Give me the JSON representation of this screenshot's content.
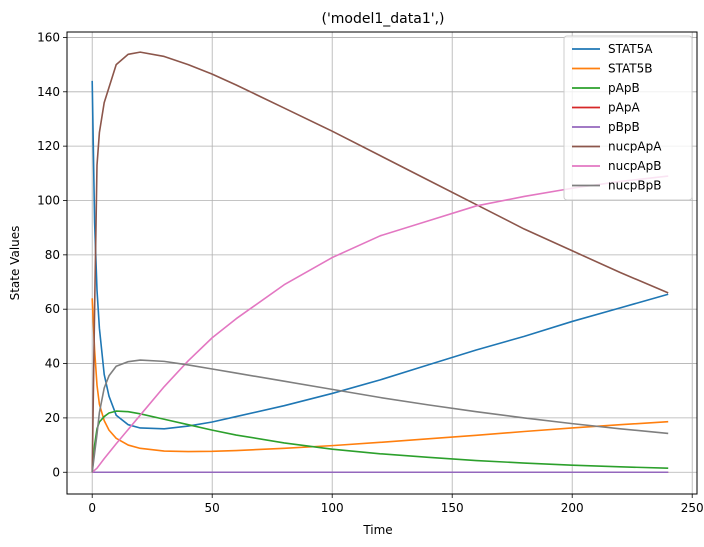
{
  "chart_data": {
    "type": "line",
    "title": "('model1_data1',)",
    "xlabel": "Time",
    "ylabel": "State Values",
    "xlim": [
      -10.5,
      252
    ],
    "ylim": [
      -8,
      162
    ],
    "xticks": [
      0,
      50,
      100,
      150,
      200,
      250
    ],
    "yticks": [
      0,
      20,
      40,
      60,
      80,
      100,
      120,
      140,
      160
    ],
    "grid": true,
    "legend": "top-right",
    "series": [
      {
        "name": "STAT5A",
        "color": "#1f77b4",
        "points": [
          [
            0,
            144
          ],
          [
            1,
            92
          ],
          [
            2,
            67
          ],
          [
            3,
            53
          ],
          [
            5,
            36
          ],
          [
            7,
            28
          ],
          [
            10,
            21
          ],
          [
            15,
            17.5
          ],
          [
            20,
            16.3
          ],
          [
            30,
            16
          ],
          [
            40,
            17
          ],
          [
            50,
            18.5
          ],
          [
            60,
            20.5
          ],
          [
            80,
            24.5
          ],
          [
            100,
            29
          ],
          [
            120,
            34
          ],
          [
            140,
            39.5
          ],
          [
            160,
            45
          ],
          [
            180,
            50
          ],
          [
            200,
            55.5
          ],
          [
            220,
            60.5
          ],
          [
            240,
            65.5
          ]
        ]
      },
      {
        "name": "STAT5B",
        "color": "#ff7f0e",
        "points": [
          [
            0,
            64
          ],
          [
            1,
            45
          ],
          [
            2,
            32
          ],
          [
            3,
            25
          ],
          [
            5,
            19
          ],
          [
            7,
            15.5
          ],
          [
            10,
            12.5
          ],
          [
            15,
            10
          ],
          [
            20,
            8.8
          ],
          [
            30,
            7.8
          ],
          [
            40,
            7.6
          ],
          [
            50,
            7.7
          ],
          [
            60,
            8
          ],
          [
            80,
            8.8
          ],
          [
            100,
            9.8
          ],
          [
            120,
            11
          ],
          [
            140,
            12.3
          ],
          [
            160,
            13.6
          ],
          [
            180,
            15
          ],
          [
            200,
            16.3
          ],
          [
            220,
            17.5
          ],
          [
            240,
            18.6
          ]
        ]
      },
      {
        "name": "pApB",
        "color": "#2ca02c",
        "points": [
          [
            0,
            0
          ],
          [
            1,
            10
          ],
          [
            2,
            16
          ],
          [
            3,
            18.5
          ],
          [
            5,
            20.5
          ],
          [
            7,
            21.8
          ],
          [
            10,
            22.5
          ],
          [
            15,
            22.3
          ],
          [
            20,
            21.5
          ],
          [
            30,
            19.5
          ],
          [
            40,
            17.5
          ],
          [
            50,
            15.5
          ],
          [
            60,
            13.7
          ],
          [
            80,
            10.8
          ],
          [
            100,
            8.5
          ],
          [
            120,
            6.8
          ],
          [
            140,
            5.5
          ],
          [
            160,
            4.3
          ],
          [
            180,
            3.4
          ],
          [
            200,
            2.6
          ],
          [
            220,
            2
          ],
          [
            240,
            1.5
          ]
        ]
      },
      {
        "name": "pApA",
        "color": "#d62728",
        "points": [
          [
            0,
            0
          ],
          [
            240,
            0
          ]
        ]
      },
      {
        "name": "pBpB",
        "color": "#9467bd",
        "points": [
          [
            0,
            0
          ],
          [
            240,
            0
          ]
        ]
      },
      {
        "name": "nucpApA",
        "color": "#8c564b",
        "points": [
          [
            0,
            0
          ],
          [
            1,
            60
          ],
          [
            2,
            113
          ],
          [
            3,
            125
          ],
          [
            5,
            136
          ],
          [
            10,
            150
          ],
          [
            15,
            153.8
          ],
          [
            20,
            154.6
          ],
          [
            30,
            153
          ],
          [
            40,
            150
          ],
          [
            50,
            146.5
          ],
          [
            60,
            142.5
          ],
          [
            80,
            134
          ],
          [
            100,
            125.5
          ],
          [
            120,
            116.5
          ],
          [
            140,
            107.5
          ],
          [
            160,
            98.5
          ],
          [
            180,
            89.5
          ],
          [
            200,
            81.5
          ],
          [
            220,
            73.5
          ],
          [
            240,
            66
          ]
        ]
      },
      {
        "name": "nucpApB",
        "color": "#e377c2",
        "points": [
          [
            0,
            0
          ],
          [
            2,
            1.5
          ],
          [
            5,
            5
          ],
          [
            10,
            10.5
          ],
          [
            20,
            21
          ],
          [
            30,
            31.5
          ],
          [
            40,
            41
          ],
          [
            50,
            49.5
          ],
          [
            60,
            56.5
          ],
          [
            80,
            69
          ],
          [
            100,
            79
          ],
          [
            120,
            87
          ],
          [
            140,
            92.5
          ],
          [
            160,
            98
          ],
          [
            180,
            101.5
          ],
          [
            200,
            104.5
          ],
          [
            220,
            107
          ],
          [
            240,
            109
          ]
        ]
      },
      {
        "name": "nucpBpB",
        "color": "#7f7f7f",
        "points": [
          [
            0,
            0
          ],
          [
            2,
            14
          ],
          [
            3,
            22
          ],
          [
            5,
            31
          ],
          [
            7,
            35.5
          ],
          [
            10,
            39
          ],
          [
            15,
            40.7
          ],
          [
            20,
            41.3
          ],
          [
            30,
            40.8
          ],
          [
            40,
            39.5
          ],
          [
            50,
            38
          ],
          [
            60,
            36.5
          ],
          [
            80,
            33.5
          ],
          [
            100,
            30.5
          ],
          [
            120,
            27.5
          ],
          [
            140,
            24.8
          ],
          [
            160,
            22.3
          ],
          [
            180,
            20
          ],
          [
            200,
            17.9
          ],
          [
            220,
            16
          ],
          [
            240,
            14.3
          ]
        ]
      }
    ]
  }
}
